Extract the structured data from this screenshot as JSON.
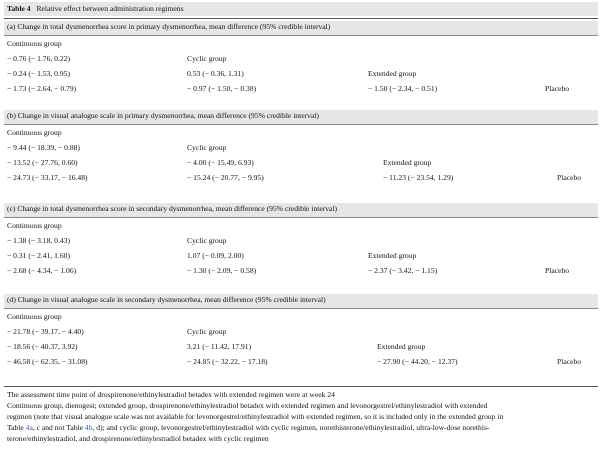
{
  "table": {
    "label": "Table 4",
    "title": "Relative effect between administration regimens"
  },
  "sections": [
    {
      "heading": "(a) Change in total dysmenorrhea score in primary dysmenorrhea, mean difference (95% credible interval)",
      "group_labels": [
        "Continuous group",
        "Cyclic group",
        "Extended group",
        "Placebo"
      ],
      "rows": [
        [
          "− 0.76 (− 1.76, 0.22)"
        ],
        [
          "− 0.24 (− 1.53, 0.95)",
          "0.53 (− 0.36, 1.31)"
        ],
        [
          "− 1.73 (− 2.64, − 0.79)",
          "− 0.97 (− 1.50, − 0.38)",
          "− 1.50 (− 2.34, − 0.51)"
        ]
      ]
    },
    {
      "heading": "(b) Change in visual analogue scale in primary dysmenorrhea, mean difference (95% credible interval)",
      "group_labels": [
        "Continuous group",
        "Cyclic group",
        "Extended group",
        "Placebo"
      ],
      "rows": [
        [
          "− 9.44 (− 18.39, − 0.88)"
        ],
        [
          "− 13.52 (− 27.76, 0.60)",
          "− 4.00 (− 15.49, 6.93)"
        ],
        [
          "− 24.73 (− 33.17, − 16.48)",
          "− 15.24 (− 20.77, − 9.95)",
          "− 11.23 (− 23.54, 1.29)"
        ]
      ]
    },
    {
      "heading": "(c) Change in total dysmenorrhea score in secondary dysmenorrhea, mean difference (95% credible interval)",
      "group_labels": [
        "Continuous group",
        "Cyclic group",
        "Extended group",
        "Placebo"
      ],
      "rows": [
        [
          "− 1.38 (− 3.18, 0.43)"
        ],
        [
          "− 0.31 (− 2.41, 1.60)",
          "1.07 (− 0.09, 2.00)"
        ],
        [
          "− 2.68 (− 4.34, − 1.06)",
          "− 1.30 (− 2.09, − 0.58)",
          "− 2.37 (− 3.42, − 1.15)"
        ]
      ]
    },
    {
      "heading": "(d) Change in visual analogue scale in secondary dysmenorrhea, mean difference (95% credible interval)",
      "group_labels": [
        "Continuous group",
        "Cyclic group",
        "Extended group",
        "Placebo"
      ],
      "rows": [
        [
          "− 21.78 (− 39.17, − 4.40)"
        ],
        [
          "− 18.56 (− 40.37, 3.92)",
          "3.21 (− 11.42, 17.91)"
        ],
        [
          "− 46.58 (− 62.35, − 31.08)",
          "− 24.85 (− 32.22, − 17.18)",
          "− 27.90 (− 44.20, − 12.37)"
        ]
      ]
    }
  ],
  "footnotes": {
    "line1": "The assessment time point of drospirenone/ethinylestradiol betadex with extended regimen were at week 24",
    "line2": "Continuous group, dienogest; extended group, drospirenone/ethinylestradiol betadex with extended regimen and levonorgestrel/ethinylestradiol with extended",
    "line3": "regimen (note that visual analogue scale was not available for levonorgestrel/ethinylestradiol with extended regimen, so it is included only in the extended group in",
    "line4_pre": "Table ",
    "line4_link1": "4a",
    "line4_mid": ", c and not Table ",
    "line4_link2": "4b",
    "line4_post": ", d); and cyclic group, levonorgestrel/ethinylestradiol with cyclic regimen, norethisterone/ethinylestradiol, ultra-low-dose norethis-",
    "line5": "terone/ethinylestradiol, and drospirenone/ethinylestradiol betadex with cyclic regimen"
  }
}
